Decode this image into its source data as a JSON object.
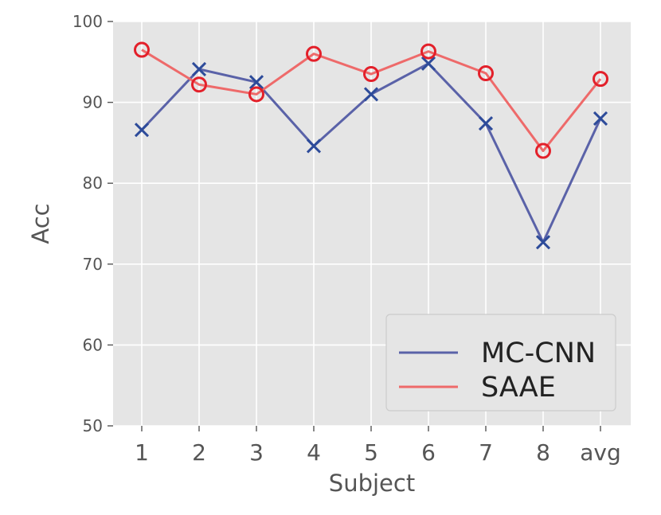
{
  "chart_data": {
    "type": "line",
    "title": "",
    "xlabel": "Subject",
    "ylabel": "Acc",
    "categories": [
      "1",
      "2",
      "3",
      "4",
      "5",
      "6",
      "7",
      "8",
      "avg"
    ],
    "ylim": [
      50,
      100
    ],
    "yticks": [
      50,
      60,
      70,
      80,
      90,
      100
    ],
    "grid": true,
    "legend_position": "bottom-right",
    "series": [
      {
        "name": "MC-CNN",
        "values": [
          86.6,
          94.1,
          92.5,
          84.6,
          91.0,
          94.8,
          87.4,
          72.7,
          88.0
        ],
        "color": "#5a62a8",
        "marker": "x",
        "marker_color": "#2d4b9a"
      },
      {
        "name": "SAAE",
        "values": [
          96.5,
          92.2,
          91.0,
          96.0,
          93.5,
          96.3,
          93.6,
          84.0,
          92.9
        ],
        "color": "#ee6a6a",
        "marker": "o",
        "marker_color": "#e3202a"
      }
    ]
  }
}
